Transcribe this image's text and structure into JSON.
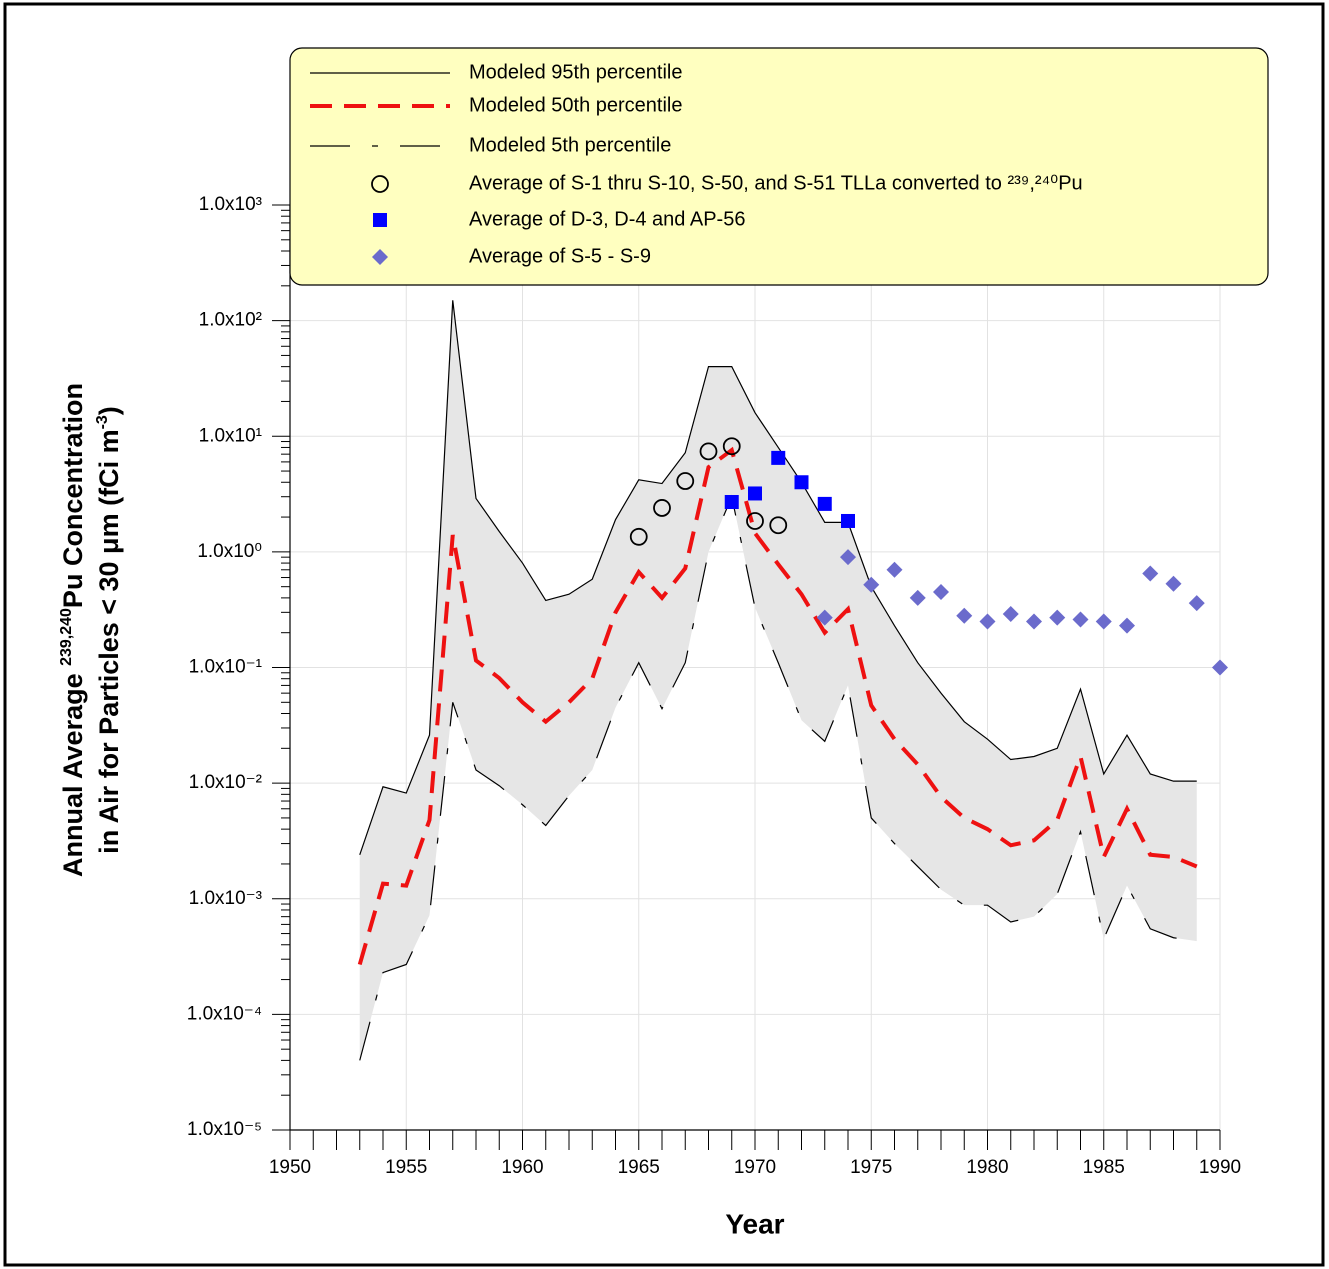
{
  "chart_data": {
    "type": "line",
    "x_label": "Year",
    "y_label": [
      [
        "Annual Average ",
        "239,240",
        "Pu Concentration"
      ],
      [
        "in Air for Particles < 30 μm (fCi m",
        "-3",
        ")"
      ]
    ],
    "xlim": [
      1950,
      1990
    ],
    "xticks": [
      1950,
      1955,
      1960,
      1965,
      1970,
      1975,
      1980,
      1985,
      1990
    ],
    "ylim": [
      1e-05,
      1000
    ],
    "yscale": "log",
    "yticks": [
      {
        "value": 1e-05,
        "label": "1.0x10⁻⁵"
      },
      {
        "value": 0.0001,
        "label": "1.0x10⁻⁴"
      },
      {
        "value": 0.001,
        "label": "1.0x10⁻³"
      },
      {
        "value": 0.01,
        "label": "1.0x10⁻²"
      },
      {
        "value": 0.1,
        "label": "1.0x10⁻¹"
      },
      {
        "value": 1,
        "label": "1.0x10⁰"
      },
      {
        "value": 10,
        "label": "1.0x10¹"
      },
      {
        "value": 100,
        "label": "1.0x10²"
      },
      {
        "value": 1000,
        "label": "1.0x10³"
      }
    ],
    "grid": true,
    "legend": "top",
    "band_color": "#e6e6e6",
    "series": [
      {
        "name": "Modeled 95th percentile",
        "type": "line",
        "style": "solid",
        "color": "#000000",
        "x": [
          1953,
          1954,
          1955,
          1956,
          1957,
          1958,
          1959,
          1960,
          1961,
          1962,
          1963,
          1964,
          1965,
          1966,
          1967,
          1968,
          1969,
          1970,
          1971,
          1972,
          1973,
          1974,
          1975,
          1976,
          1977,
          1978,
          1979,
          1980,
          1981,
          1982,
          1983,
          1984,
          1985,
          1986,
          1987,
          1988,
          1989
        ],
        "values": [
          0.0024,
          0.0093,
          0.0082,
          0.026,
          150,
          2.9,
          1.5,
          0.8,
          0.38,
          0.43,
          0.58,
          1.9,
          4.2,
          3.9,
          7.2,
          40,
          40,
          16,
          8,
          4,
          1.8,
          1.8,
          0.5,
          0.23,
          0.11,
          0.06,
          0.034,
          0.024,
          0.016,
          0.017,
          0.02,
          0.065,
          0.012,
          0.026,
          0.012,
          0.0104,
          0.0104
        ]
      },
      {
        "name": "Modeled 50th percentile",
        "type": "line",
        "style": "dashed",
        "color": "#ee1111",
        "x": [
          1953,
          1954,
          1955,
          1956,
          1957,
          1958,
          1959,
          1960,
          1961,
          1962,
          1963,
          1964,
          1965,
          1966,
          1967,
          1968,
          1969,
          1970,
          1971,
          1972,
          1973,
          1974,
          1975,
          1976,
          1977,
          1978,
          1979,
          1980,
          1981,
          1982,
          1983,
          1984,
          1985,
          1986,
          1987,
          1988,
          1989
        ],
        "values": [
          0.00027,
          0.00135,
          0.0013,
          0.0048,
          1.4,
          0.115,
          0.081,
          0.05,
          0.034,
          0.05,
          0.08,
          0.3,
          0.67,
          0.4,
          0.72,
          5.4,
          7.6,
          1.45,
          0.78,
          0.43,
          0.2,
          0.32,
          0.047,
          0.024,
          0.0145,
          0.0076,
          0.005,
          0.004,
          0.0029,
          0.0032,
          0.0048,
          0.017,
          0.0023,
          0.006,
          0.0024,
          0.0023,
          0.0019
        ]
      },
      {
        "name": "Modeled 5th percentile",
        "type": "line",
        "style": "dashdot",
        "color": "#000000",
        "x": [
          1953,
          1954,
          1955,
          1956,
          1957,
          1958,
          1959,
          1960,
          1961,
          1962,
          1963,
          1964,
          1965,
          1966,
          1967,
          1968,
          1969,
          1970,
          1971,
          1972,
          1973,
          1974,
          1975,
          1976,
          1977,
          1978,
          1979,
          1980,
          1981,
          1982,
          1983,
          1984,
          1985,
          1986,
          1987,
          1988,
          1989
        ],
        "values": [
          4e-05,
          0.00023,
          0.00027,
          0.00072,
          0.05,
          0.013,
          0.0095,
          0.0065,
          0.0043,
          0.0078,
          0.013,
          0.045,
          0.11,
          0.044,
          0.11,
          1.0,
          3.0,
          0.33,
          0.11,
          0.035,
          0.023,
          0.07,
          0.005,
          0.003,
          0.0019,
          0.0012,
          0.00088,
          0.00088,
          0.00063,
          0.0007,
          0.0011,
          0.0038,
          0.00045,
          0.0013,
          0.00055,
          0.00046,
          0.00043
        ]
      },
      {
        "name": "Average of S-1 thru S-10, S-50, and S-51 TLLa converted to ²³⁹,²⁴⁰Pu",
        "type": "scatter",
        "marker": "circle",
        "color": "#000000",
        "x": [
          1965,
          1966,
          1967,
          1968,
          1969,
          1970,
          1971
        ],
        "values": [
          1.35,
          2.4,
          4.1,
          7.4,
          8.2,
          1.85,
          1.7
        ]
      },
      {
        "name": "Average of D-3, D-4 and AP-56",
        "type": "scatter",
        "marker": "square",
        "color": "#0000ff",
        "x": [
          1969,
          1970,
          1971,
          1972,
          1973,
          1974
        ],
        "values": [
          2.7,
          3.2,
          6.5,
          4.0,
          2.6,
          1.85
        ]
      },
      {
        "name": "Average of S-5 - S-9",
        "type": "scatter",
        "marker": "diamond",
        "color": "#6b6bcc",
        "x": [
          1973,
          1974,
          1975,
          1976,
          1977,
          1978,
          1979,
          1980,
          1981,
          1982,
          1983,
          1984,
          1985,
          1986,
          1987,
          1988,
          1989,
          1990
        ],
        "values": [
          0.27,
          0.9,
          0.52,
          0.7,
          0.4,
          0.45,
          0.28,
          0.25,
          0.29,
          0.25,
          0.27,
          0.26,
          0.25,
          0.23,
          0.65,
          0.53,
          0.36,
          0.1
        ]
      }
    ]
  }
}
